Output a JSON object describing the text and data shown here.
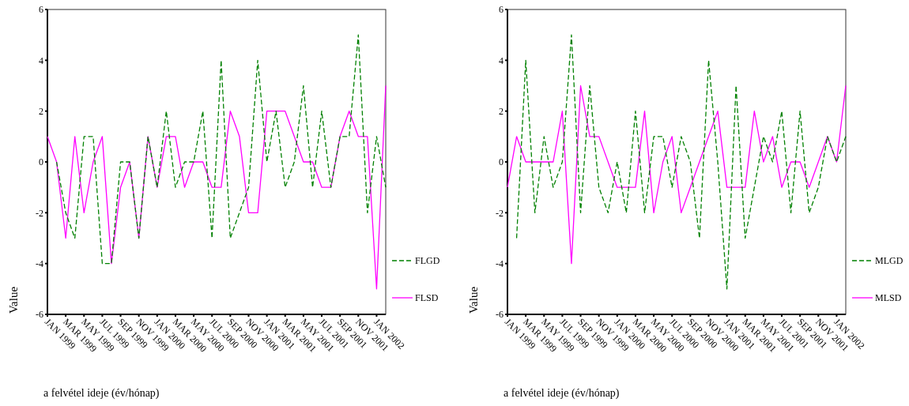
{
  "chart_data": [
    {
      "type": "line",
      "xlabel": "a felvétel ideje (év/hónap)",
      "ylabel": "Value",
      "legend": "right",
      "grid": false,
      "categories": [
        "JAN 1999",
        null,
        "MAR 1999",
        null,
        "MAY 1999",
        null,
        "JUL 1999",
        null,
        "SEP 1999",
        null,
        "NOV 1999",
        null,
        "JAN 2000",
        null,
        "MAR 2000",
        null,
        "MAY 2000",
        null,
        "JUL 2000",
        null,
        "SEP 2000",
        null,
        "NOV 2000",
        null,
        "JAN 2001",
        null,
        "MAR 2001",
        null,
        "MAY 2001",
        null,
        "JUL 2001",
        null,
        "SEP 2001",
        null,
        "NOV 2001",
        null,
        "JAN 2002",
        null
      ],
      "ylim": [
        -6,
        6
      ],
      "yticks": [
        -6,
        -4,
        -2,
        0,
        2,
        4,
        6
      ],
      "series": [
        {
          "name": "FLGD",
          "color": "#008000",
          "line_style": "dashed",
          "values": [
            null,
            0,
            -2,
            -3,
            1,
            1,
            -4,
            -4,
            0,
            0,
            -3,
            1,
            -1,
            2,
            -1,
            0,
            0,
            2,
            -3,
            4,
            -3,
            -2,
            -1,
            4,
            0,
            2,
            -1,
            0,
            3,
            -1,
            2,
            -1,
            1,
            1,
            5,
            -2,
            1,
            -1
          ]
        },
        {
          "name": "FLSD",
          "color": "#ff00ff",
          "line_style": "solid",
          "values": [
            1,
            0,
            -3,
            1,
            -2,
            0,
            1,
            -4,
            -1,
            0,
            -3,
            1,
            -1,
            1,
            1,
            -1,
            0,
            0,
            -1,
            -1,
            2,
            1,
            -2,
            -2,
            2,
            2,
            2,
            1,
            0,
            0,
            -1,
            -1,
            1,
            2,
            1,
            1,
            -5,
            3
          ]
        }
      ]
    },
    {
      "type": "line",
      "xlabel": "a felvétel ideje (év/hónap)",
      "ylabel": "Value",
      "legend": "right",
      "grid": false,
      "categories": [
        "JAN 1999",
        null,
        "MAR 1999",
        null,
        "MAY 1999",
        null,
        "JUL 1999",
        null,
        "SEP 1999",
        null,
        "NOV 1999",
        null,
        "JAN 2000",
        null,
        "MAR 2000",
        null,
        "MAY 2000",
        null,
        "JUL 2000",
        null,
        "SEP 2000",
        null,
        "NOV 2000",
        null,
        "JAN 2001",
        null,
        "MAR 2001",
        null,
        "MAY 2001",
        null,
        "JUL 2001",
        null,
        "SEP 2001",
        null,
        "NOV 2001",
        null,
        "JAN 2002",
        null
      ],
      "ylim": [
        -6,
        6
      ],
      "yticks": [
        -6,
        -4,
        -2,
        0,
        2,
        4,
        6
      ],
      "series": [
        {
          "name": "MLGD",
          "color": "#008000",
          "line_style": "dashed",
          "values": [
            null,
            -3,
            4,
            -2,
            1,
            -1,
            0,
            5,
            -2,
            3,
            -1,
            -2,
            0,
            -2,
            2,
            -2,
            1,
            1,
            -1,
            1,
            0,
            -3,
            4,
            0,
            -5,
            3,
            -3,
            -1,
            1,
            0,
            2,
            -2,
            2,
            -2,
            -1,
            1,
            0,
            1
          ]
        },
        {
          "name": "MLSD",
          "color": "#ff00ff",
          "line_style": "solid",
          "values": [
            -1,
            1,
            0,
            0,
            0,
            0,
            2,
            -4,
            3,
            1,
            1,
            0,
            -1,
            -1,
            -1,
            2,
            -2,
            0,
            1,
            -2,
            -1,
            0,
            1,
            2,
            -1,
            -1,
            -1,
            2,
            0,
            1,
            -1,
            0,
            0,
            -1,
            0,
            1,
            0,
            3
          ]
        }
      ]
    }
  ]
}
